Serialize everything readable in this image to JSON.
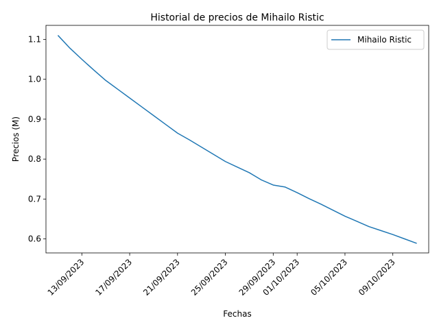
{
  "chart_data": {
    "type": "line",
    "title": "Historial de precios de Mihailo Ristic",
    "xlabel": "Fechas",
    "ylabel": "Precios (M)",
    "legend_position": "top-right",
    "grid": false,
    "line_color": "#1f77b4",
    "xlim": [
      "2023-09-10",
      "2023-10-12"
    ],
    "ylim": [
      0.565,
      1.135
    ],
    "x_ticks": [
      "13/09/2023",
      "17/09/2023",
      "21/09/2023",
      "25/09/2023",
      "29/09/2023",
      "01/10/2023",
      "05/10/2023",
      "09/10/2023"
    ],
    "x_tick_dates": [
      "2023-09-13",
      "2023-09-17",
      "2023-09-21",
      "2023-09-25",
      "2023-09-29",
      "2023-10-01",
      "2023-10-05",
      "2023-10-09"
    ],
    "y_ticks": [
      "0.6",
      "0.7",
      "0.8",
      "0.9",
      "1.0",
      "1.1"
    ],
    "y_tick_values": [
      0.6,
      0.7,
      0.8,
      0.9,
      1.0,
      1.1
    ],
    "series": [
      {
        "name": "Mihailo Ristic",
        "x": [
          "2023-09-11",
          "2023-09-12",
          "2023-09-13",
          "2023-09-14",
          "2023-09-15",
          "2023-09-16",
          "2023-09-17",
          "2023-09-18",
          "2023-09-19",
          "2023-09-20",
          "2023-09-21",
          "2023-09-22",
          "2023-09-23",
          "2023-09-24",
          "2023-09-25",
          "2023-09-26",
          "2023-09-27",
          "2023-09-28",
          "2023-09-29",
          "2023-09-30",
          "2023-10-01",
          "2023-10-02",
          "2023-10-03",
          "2023-10-04",
          "2023-10-05",
          "2023-10-06",
          "2023-10-07",
          "2023-10-08",
          "2023-10-09",
          "2023-10-10",
          "2023-10-11"
        ],
        "values": [
          1.11,
          1.078,
          1.05,
          1.023,
          0.997,
          0.975,
          0.953,
          0.931,
          0.909,
          0.887,
          0.865,
          0.848,
          0.83,
          0.812,
          0.794,
          0.78,
          0.766,
          0.748,
          0.735,
          0.73,
          0.716,
          0.701,
          0.687,
          0.672,
          0.657,
          0.644,
          0.631,
          0.621,
          0.611,
          0.6,
          0.589
        ]
      }
    ]
  }
}
